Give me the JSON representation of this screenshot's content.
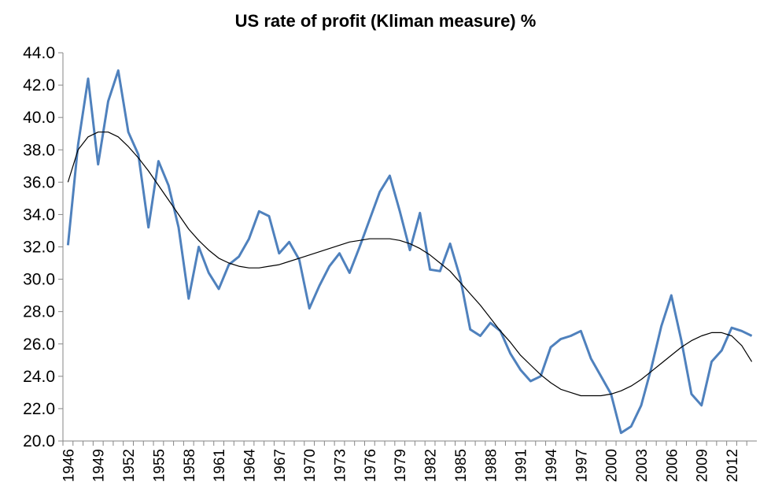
{
  "chart_data": {
    "type": "line",
    "title": "US rate of profit (Kliman measure) %",
    "xlabel": "",
    "ylabel": "",
    "ylim": [
      20.0,
      44.0
    ],
    "ytick_labels": [
      "20.0",
      "22.0",
      "24.0",
      "26.0",
      "28.0",
      "30.0",
      "32.0",
      "34.0",
      "36.0",
      "38.0",
      "40.0",
      "42.0",
      "44.0"
    ],
    "xtick_labels": [
      "1946",
      "1949",
      "1952",
      "1955",
      "1958",
      "1961",
      "1964",
      "1967",
      "1970",
      "1973",
      "1976",
      "1979",
      "1982",
      "1985",
      "1988",
      "1991",
      "1994",
      "1997",
      "2000",
      "2003",
      "2006",
      "2009",
      "2012"
    ],
    "grid": false,
    "legend": "none",
    "x": [
      1946,
      1947,
      1948,
      1949,
      1950,
      1951,
      1952,
      1953,
      1954,
      1955,
      1956,
      1957,
      1958,
      1959,
      1960,
      1961,
      1962,
      1963,
      1964,
      1965,
      1966,
      1967,
      1968,
      1969,
      1970,
      1971,
      1972,
      1973,
      1974,
      1975,
      1976,
      1977,
      1978,
      1979,
      1980,
      1981,
      1982,
      1983,
      1984,
      1985,
      1986,
      1987,
      1988,
      1989,
      1990,
      1991,
      1992,
      1993,
      1994,
      1995,
      1996,
      1997,
      1998,
      1999,
      2000,
      2001,
      2002,
      2003,
      2004,
      2005,
      2006,
      2007,
      2008,
      2009,
      2010,
      2011,
      2012,
      2013,
      2014
    ],
    "series": [
      {
        "color": "#4f81bd",
        "values": [
          32.1,
          38.3,
          42.4,
          37.1,
          41.0,
          42.9,
          39.1,
          37.7,
          33.2,
          37.3,
          35.8,
          33.2,
          28.8,
          32.0,
          30.4,
          29.4,
          30.9,
          31.4,
          32.5,
          34.2,
          33.9,
          31.6,
          32.3,
          31.2,
          28.2,
          29.6,
          30.8,
          31.6,
          30.4,
          32.0,
          33.7,
          35.4,
          36.4,
          34.2,
          31.8,
          34.1,
          30.6,
          30.5,
          32.2,
          30.1,
          26.9,
          26.5,
          27.3,
          26.8,
          25.4,
          24.4,
          23.7,
          24.0,
          25.8,
          26.3,
          26.5,
          26.8,
          25.1,
          24.0,
          22.9,
          20.5,
          20.9,
          22.2,
          24.5,
          27.1,
          29.0,
          26.2,
          22.9,
          22.2,
          24.9,
          25.6,
          27.0,
          26.8,
          26.5
        ]
      },
      {
        "color": "#000000",
        "values": [
          36.0,
          38.0,
          38.8,
          39.1,
          39.1,
          38.8,
          38.2,
          37.5,
          36.7,
          35.8,
          34.9,
          34.0,
          33.1,
          32.4,
          31.8,
          31.3,
          31.0,
          30.8,
          30.7,
          30.7,
          30.8,
          30.9,
          31.1,
          31.3,
          31.5,
          31.7,
          31.9,
          32.1,
          32.3,
          32.4,
          32.5,
          32.5,
          32.5,
          32.4,
          32.2,
          31.9,
          31.5,
          31.0,
          30.5,
          29.8,
          29.1,
          28.4,
          27.6,
          26.8,
          26.1,
          25.3,
          24.7,
          24.1,
          23.6,
          23.2,
          23.0,
          22.8,
          22.8,
          22.8,
          22.9,
          23.1,
          23.4,
          23.8,
          24.3,
          24.8,
          25.3,
          25.8,
          26.2,
          26.5,
          26.7,
          26.7,
          26.5,
          25.9,
          24.9
        ]
      }
    ]
  }
}
